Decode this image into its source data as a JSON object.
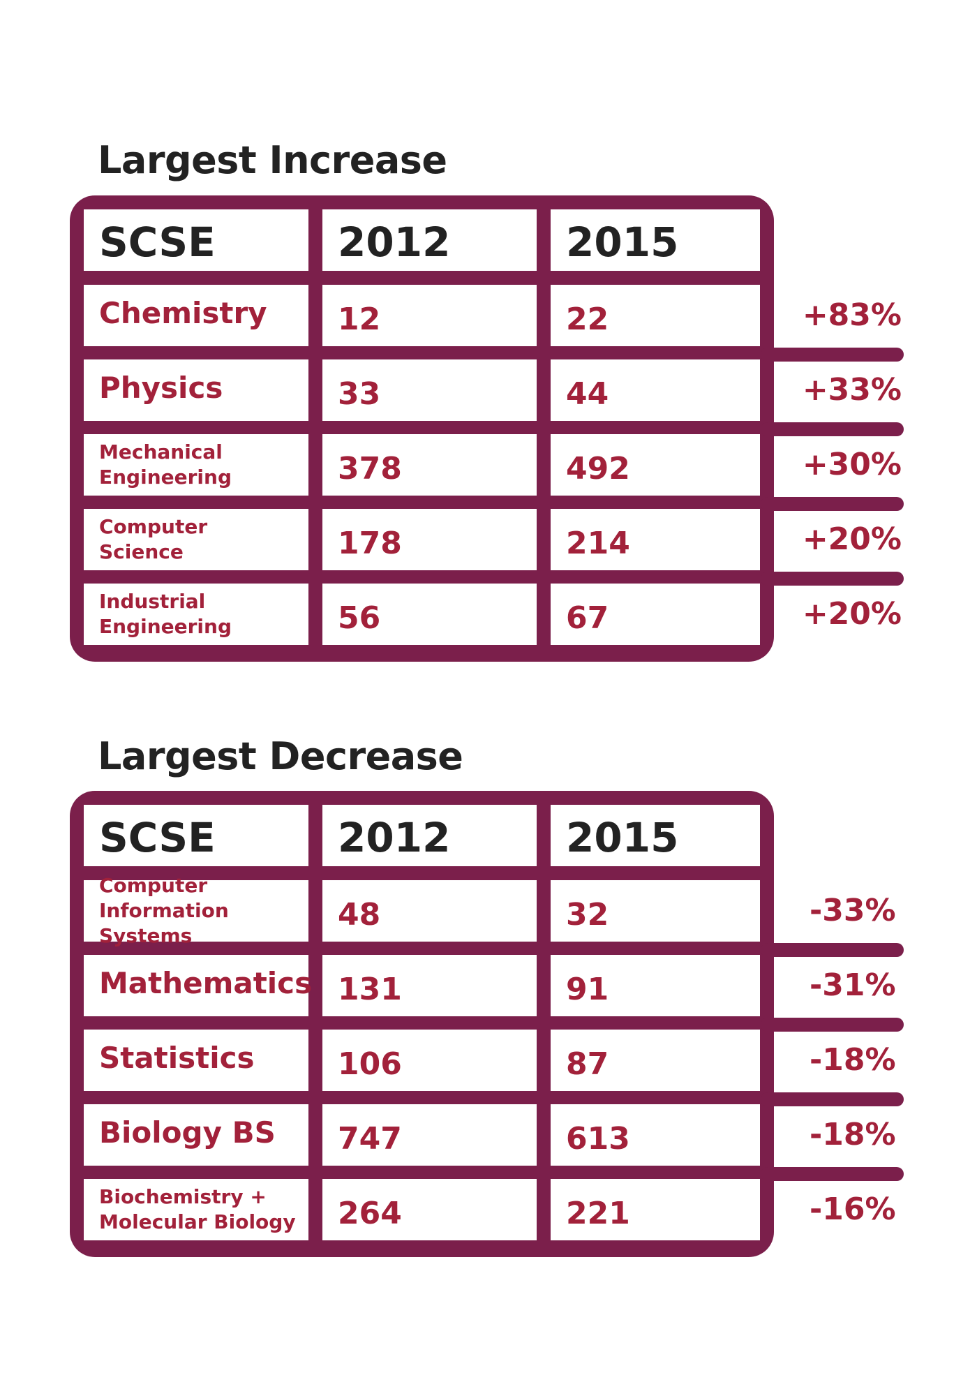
{
  "chart_data": [
    {
      "type": "table",
      "title": "Largest Increase",
      "columns": [
        "SCSE",
        "2012",
        "2015"
      ],
      "rows": [
        {
          "program": "Chemistry",
          "v2012": "12",
          "v2015": "22",
          "change": "+83%"
        },
        {
          "program": "Physics",
          "v2012": "33",
          "v2015": "44",
          "change": "+33%"
        },
        {
          "program": "Mechanical\nEngineering",
          "v2012": "378",
          "v2015": "492",
          "change": "+30%"
        },
        {
          "program": "Computer\nScience",
          "v2012": "178",
          "v2015": "214",
          "change": "+20%"
        },
        {
          "program": "Industrial\nEngineering",
          "v2012": "56",
          "v2015": "67",
          "change": "+20%"
        }
      ]
    },
    {
      "type": "table",
      "title": "Largest Decrease",
      "columns": [
        "SCSE",
        "2012",
        "2015"
      ],
      "rows": [
        {
          "program": "Computer\nInformation Systems",
          "v2012": "48",
          "v2015": "32",
          "change": "-33%"
        },
        {
          "program": "Mathematics",
          "v2012": "131",
          "v2015": "91",
          "change": "-31%"
        },
        {
          "program": "Statistics",
          "v2012": "106",
          "v2015": "87",
          "change": "-18%"
        },
        {
          "program": "Biology BS",
          "v2012": "747",
          "v2015": "613",
          "change": "-18%"
        },
        {
          "program": "Biochemistry +\nMolecular Biology",
          "v2012": "264",
          "v2015": "221",
          "change": "-16%"
        }
      ]
    }
  ],
  "colors": {
    "frame": "#7b1f4b",
    "value_text": "#a2213a",
    "header_text": "#222222"
  }
}
